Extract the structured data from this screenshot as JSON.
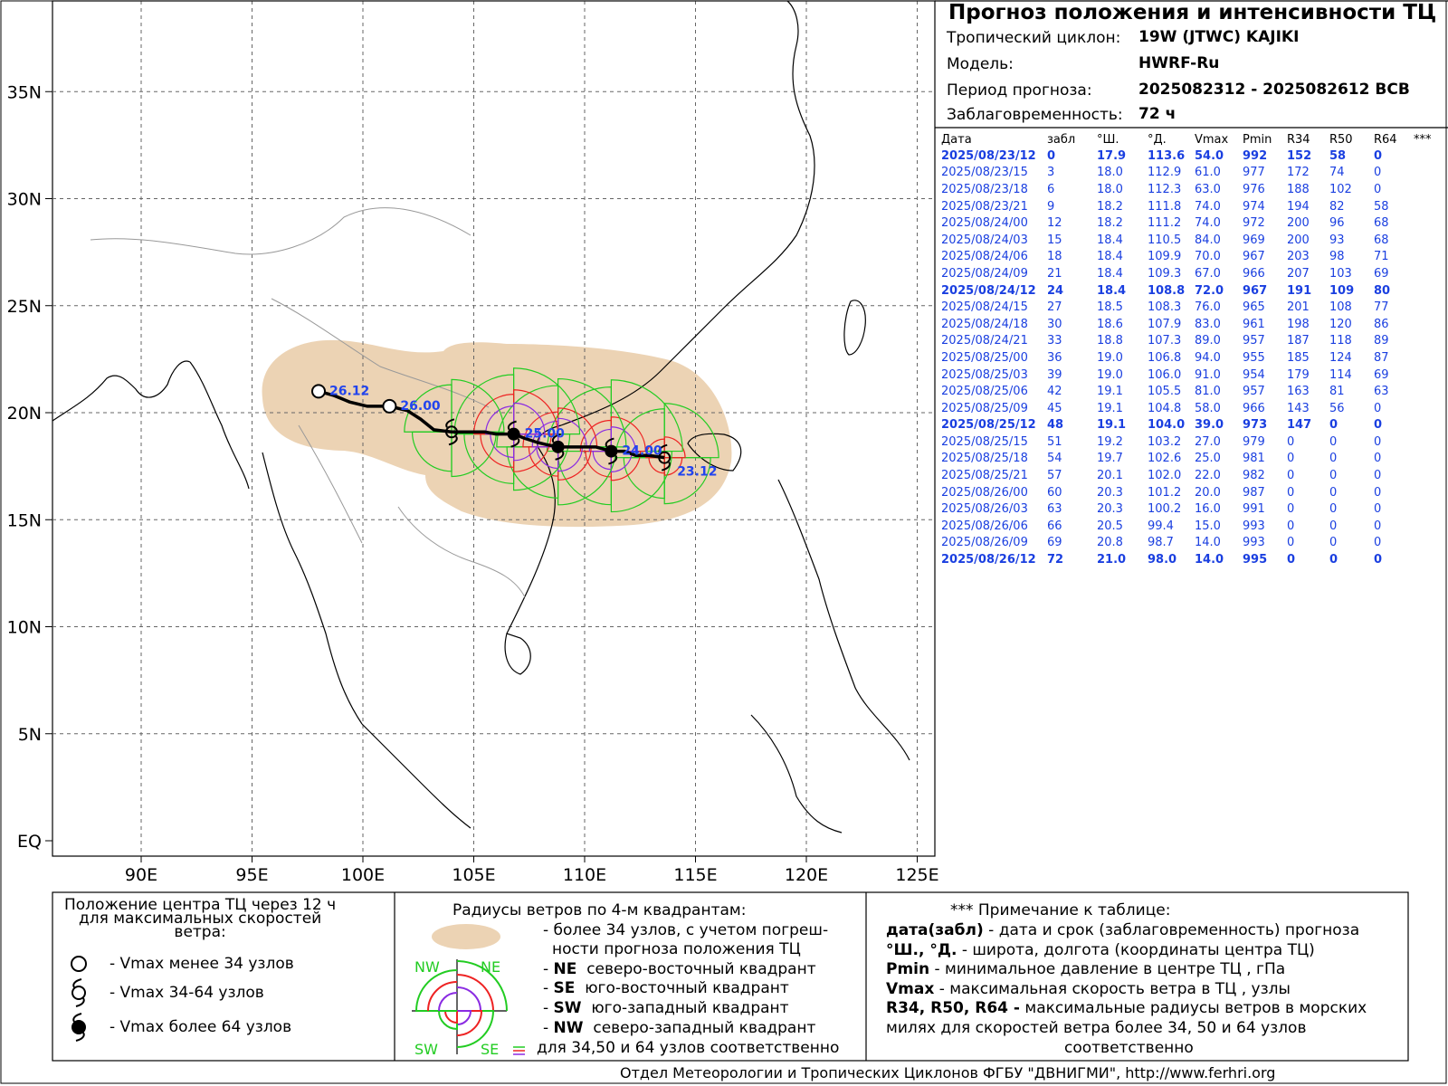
{
  "header": {
    "title": "Прогноз положения и интенсивности ТЦ",
    "cyclone_label": "Тропический циклон:",
    "cyclone_value": "19W (JTWC)  KAJIKI",
    "model_label": "Модель:",
    "model_value": "HWRF-Ru",
    "period_label": "Период прогноза:",
    "period_value": "2025082312 - 2025082612 ВСВ",
    "lead_label": "Заблаговременность:",
    "lead_value": "72 ч"
  },
  "table": {
    "headers": [
      "Дата",
      "забл",
      "°Ш.",
      "°Д.",
      "Vmax",
      "Pmin",
      "R34",
      "R50",
      "R64",
      "***"
    ],
    "rows": [
      {
        "date": "2025/08/23/12",
        "lead": "0",
        "lat": "17.9",
        "lon": "113.6",
        "vmax": "54.0",
        "pmin": "992",
        "r34": "152",
        "r50": "58",
        "r64": "0",
        "bold": true
      },
      {
        "date": "2025/08/23/15",
        "lead": "3",
        "lat": "18.0",
        "lon": "112.9",
        "vmax": "61.0",
        "pmin": "977",
        "r34": "172",
        "r50": "74",
        "r64": "0",
        "bold": false
      },
      {
        "date": "2025/08/23/18",
        "lead": "6",
        "lat": "18.0",
        "lon": "112.3",
        "vmax": "63.0",
        "pmin": "976",
        "r34": "188",
        "r50": "102",
        "r64": "0",
        "bold": false
      },
      {
        "date": "2025/08/23/21",
        "lead": "9",
        "lat": "18.2",
        "lon": "111.8",
        "vmax": "74.0",
        "pmin": "974",
        "r34": "194",
        "r50": "82",
        "r64": "58",
        "bold": false
      },
      {
        "date": "2025/08/24/00",
        "lead": "12",
        "lat": "18.2",
        "lon": "111.2",
        "vmax": "74.0",
        "pmin": "972",
        "r34": "200",
        "r50": "96",
        "r64": "68",
        "bold": false
      },
      {
        "date": "2025/08/24/03",
        "lead": "15",
        "lat": "18.4",
        "lon": "110.5",
        "vmax": "84.0",
        "pmin": "969",
        "r34": "200",
        "r50": "93",
        "r64": "68",
        "bold": false
      },
      {
        "date": "2025/08/24/06",
        "lead": "18",
        "lat": "18.4",
        "lon": "109.9",
        "vmax": "70.0",
        "pmin": "967",
        "r34": "203",
        "r50": "98",
        "r64": "71",
        "bold": false
      },
      {
        "date": "2025/08/24/09",
        "lead": "21",
        "lat": "18.4",
        "lon": "109.3",
        "vmax": "67.0",
        "pmin": "966",
        "r34": "207",
        "r50": "103",
        "r64": "69",
        "bold": false
      },
      {
        "date": "2025/08/24/12",
        "lead": "24",
        "lat": "18.4",
        "lon": "108.8",
        "vmax": "72.0",
        "pmin": "967",
        "r34": "191",
        "r50": "109",
        "r64": "80",
        "bold": true
      },
      {
        "date": "2025/08/24/15",
        "lead": "27",
        "lat": "18.5",
        "lon": "108.3",
        "vmax": "76.0",
        "pmin": "965",
        "r34": "201",
        "r50": "108",
        "r64": "77",
        "bold": false
      },
      {
        "date": "2025/08/24/18",
        "lead": "30",
        "lat": "18.6",
        "lon": "107.9",
        "vmax": "83.0",
        "pmin": "961",
        "r34": "198",
        "r50": "120",
        "r64": "86",
        "bold": false
      },
      {
        "date": "2025/08/24/21",
        "lead": "33",
        "lat": "18.8",
        "lon": "107.3",
        "vmax": "89.0",
        "pmin": "957",
        "r34": "187",
        "r50": "118",
        "r64": "89",
        "bold": false
      },
      {
        "date": "2025/08/25/00",
        "lead": "36",
        "lat": "19.0",
        "lon": "106.8",
        "vmax": "94.0",
        "pmin": "955",
        "r34": "185",
        "r50": "124",
        "r64": "87",
        "bold": false
      },
      {
        "date": "2025/08/25/03",
        "lead": "39",
        "lat": "19.0",
        "lon": "106.0",
        "vmax": "91.0",
        "pmin": "954",
        "r34": "179",
        "r50": "114",
        "r64": "69",
        "bold": false
      },
      {
        "date": "2025/08/25/06",
        "lead": "42",
        "lat": "19.1",
        "lon": "105.5",
        "vmax": "81.0",
        "pmin": "957",
        "r34": "163",
        "r50": "81",
        "r64": "63",
        "bold": false
      },
      {
        "date": "2025/08/25/09",
        "lead": "45",
        "lat": "19.1",
        "lon": "104.8",
        "vmax": "58.0",
        "pmin": "966",
        "r34": "143",
        "r50": "56",
        "r64": "0",
        "bold": false
      },
      {
        "date": "2025/08/25/12",
        "lead": "48",
        "lat": "19.1",
        "lon": "104.0",
        "vmax": "39.0",
        "pmin": "973",
        "r34": "147",
        "r50": "0",
        "r64": "0",
        "bold": true
      },
      {
        "date": "2025/08/25/15",
        "lead": "51",
        "lat": "19.2",
        "lon": "103.2",
        "vmax": "27.0",
        "pmin": "979",
        "r34": "0",
        "r50": "0",
        "r64": "0",
        "bold": false
      },
      {
        "date": "2025/08/25/18",
        "lead": "54",
        "lat": "19.7",
        "lon": "102.6",
        "vmax": "25.0",
        "pmin": "981",
        "r34": "0",
        "r50": "0",
        "r64": "0",
        "bold": false
      },
      {
        "date": "2025/08/25/21",
        "lead": "57",
        "lat": "20.1",
        "lon": "102.0",
        "vmax": "22.0",
        "pmin": "982",
        "r34": "0",
        "r50": "0",
        "r64": "0",
        "bold": false
      },
      {
        "date": "2025/08/26/00",
        "lead": "60",
        "lat": "20.3",
        "lon": "101.2",
        "vmax": "20.0",
        "pmin": "987",
        "r34": "0",
        "r50": "0",
        "r64": "0",
        "bold": false
      },
      {
        "date": "2025/08/26/03",
        "lead": "63",
        "lat": "20.3",
        "lon": "100.2",
        "vmax": "16.0",
        "pmin": "991",
        "r34": "0",
        "r50": "0",
        "r64": "0",
        "bold": false
      },
      {
        "date": "2025/08/26/06",
        "lead": "66",
        "lat": "20.5",
        "lon": "99.4",
        "vmax": "15.0",
        "pmin": "993",
        "r34": "0",
        "r50": "0",
        "r64": "0",
        "bold": false
      },
      {
        "date": "2025/08/26/09",
        "lead": "69",
        "lat": "20.8",
        "lon": "98.7",
        "vmax": "14.0",
        "pmin": "993",
        "r34": "0",
        "r50": "0",
        "r64": "0",
        "bold": false
      },
      {
        "date": "2025/08/26/12",
        "lead": "72",
        "lat": "21.0",
        "lon": "98.0",
        "vmax": "14.0",
        "pmin": "995",
        "r34": "0",
        "r50": "0",
        "r64": "0",
        "bold": true
      }
    ]
  },
  "map": {
    "lat_labels": [
      "35N",
      "30N",
      "25N",
      "20N",
      "15N",
      "10N",
      "5N",
      "EQ"
    ],
    "lat_values": [
      35,
      30,
      25,
      20,
      15,
      10,
      5,
      0
    ],
    "lon_labels": [
      "90E",
      "95E",
      "100E",
      "105E",
      "110E",
      "115E",
      "120E",
      "125E"
    ],
    "lon_values": [
      90,
      95,
      100,
      105,
      110,
      115,
      120,
      125
    ],
    "track_labels": [
      {
        "text": "26.12",
        "lon": 98.0,
        "lat": 21.0
      },
      {
        "text": "26.00",
        "lon": 101.2,
        "lat": 20.3
      },
      {
        "text": "25.00",
        "lon": 106.8,
        "lat": 19.0
      },
      {
        "text": "24.00",
        "lon": 111.2,
        "lat": 18.2
      },
      {
        "text": "23.12",
        "lon": 113.6,
        "lat": 17.9
      }
    ],
    "colors": {
      "uncertainty": "#ecd3b4",
      "r34": "#22cc22",
      "r50": "#ee2222",
      "r64": "#8a2be2",
      "labels": "#2244ee"
    }
  },
  "legend": {
    "box1": {
      "title": "Положение центра ТЦ через 12 ч\nдля максимальных скоростей\nветра:",
      "items": [
        "- Vmax   менее 34 узлов",
        "- Vmax   34-64 узлов",
        "- Vmax   более 64 узлов"
      ]
    },
    "box2": {
      "title": "Радиусы ветров по 4-м квадрантам:",
      "line1": "- более 34 узлов, с учетом погреш-",
      "line2": "ности прогноза положения ТЦ",
      "items": [
        {
          "code": "NE",
          "text": "северо-восточный квадрант"
        },
        {
          "code": "SE",
          "text": "юго-восточный квадрант"
        },
        {
          "code": "SW",
          "text": "юго-западный квадрант"
        },
        {
          "code": "NW",
          "text": "северо-западный квадрант"
        }
      ],
      "last": "для 34,50 и 64 узлов соответственно",
      "quad_labels": [
        "NW",
        "NE",
        "SW",
        "SE"
      ]
    },
    "box3": {
      "title": "*** Примечание к таблице:",
      "lines": [
        {
          "key": "дата(забл)",
          "text": " - дата и срок (заблаговременность) прогноза"
        },
        {
          "key": "°Ш., °Д.",
          "text": " - широта, долгота   (координаты центра ТЦ)"
        },
        {
          "key": "Pmin",
          "text": "  - минимальное давление в центре ТЦ , гПа"
        },
        {
          "key": "Vmax",
          "text": "   -  максимальная скорость ветра в ТЦ , узлы"
        },
        {
          "key": "R34, R50, R64 -",
          "text": " максимальные радиусы ветров в морских"
        }
      ],
      "line6": "милях для скоростей ветра более 34, 50 и 64 узлов",
      "line7": "соответственно"
    }
  },
  "footer": "Отдел Метеорологии и Тропических Циклонов ФГБУ \"ДВНИГМИ\",  http://www.ferhri.org"
}
